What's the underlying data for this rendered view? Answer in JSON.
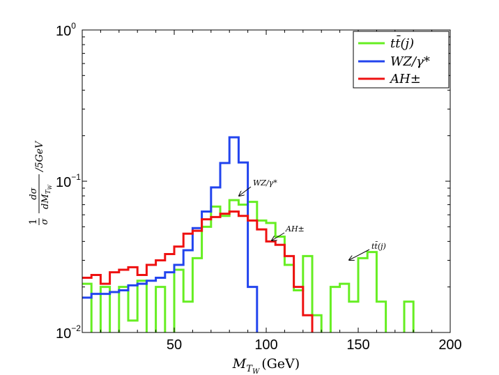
{
  "chart_data": {
    "type": "line",
    "step": true,
    "x_scale": "linear",
    "y_scale": "log",
    "xlim": [
      0,
      200
    ],
    "ylim": [
      0.01,
      1
    ],
    "xticks": [
      50,
      100,
      150,
      200
    ],
    "xtick_labels": [
      "50",
      "100",
      "150",
      "200"
    ],
    "yticks": [
      0.01,
      0.1,
      1
    ],
    "ytick_labels": [
      {
        "base": "10",
        "exp": "−2"
      },
      {
        "base": "10",
        "exp": "−1"
      },
      {
        "base": "10",
        "exp": "0"
      }
    ],
    "xlabel": {
      "main": "M",
      "sub": "T",
      "subsub": "W",
      "units": "(GeV)"
    },
    "ylabel": "1/σ dσ/dM_{T_W}/5GeV",
    "bin_width": 5,
    "legend": {
      "position": "top-right",
      "entries": [
        "tt̄(j)",
        "WZ/γ*",
        "AH±"
      ]
    },
    "series": [
      {
        "name": "tt̄(j)",
        "color": "#66ee22",
        "bin_edges_start": 0,
        "values": [
          0.021,
          0.005,
          0.02,
          0.005,
          0.02,
          0.012,
          0.022,
          0.005,
          0.02,
          0.005,
          0.026,
          0.016,
          0.031,
          0.05,
          0.068,
          0.059,
          0.075,
          0.07,
          0.073,
          0.055,
          0.053,
          0.043,
          0.028,
          0.019,
          0.032,
          0.013,
          0.008,
          0.02,
          0.021,
          0.016,
          0.031,
          0.034,
          0.016,
          0.008,
          0.005,
          0.016,
          0.008
        ]
      },
      {
        "name": "WZ/γ*",
        "color": "#2244ee",
        "bin_edges_start": 0,
        "values": [
          0.017,
          0.018,
          0.018,
          0.0185,
          0.019,
          0.0205,
          0.021,
          0.022,
          0.023,
          0.025,
          0.028,
          0.035,
          0.049,
          0.063,
          0.091,
          0.132,
          0.195,
          0.133,
          0.02,
          0.005
        ]
      },
      {
        "name": "AH±",
        "color": "#ee1111",
        "bin_edges_start": 0,
        "values": [
          0.023,
          0.024,
          0.021,
          0.025,
          0.026,
          0.027,
          0.024,
          0.028,
          0.03,
          0.033,
          0.037,
          0.045,
          0.047,
          0.056,
          0.058,
          0.061,
          0.063,
          0.059,
          0.055,
          0.048,
          0.04,
          0.038,
          0.032,
          0.02,
          0.013,
          0.009
        ]
      }
    ],
    "annotations": [
      {
        "text": "WZ/γ*",
        "target_x": 85,
        "target_y": 0.08
      },
      {
        "text": "AH±",
        "target_x": 103,
        "target_y": 0.039
      },
      {
        "text": "tt̄(j)",
        "target_x": 145,
        "target_y": 0.03
      }
    ]
  }
}
